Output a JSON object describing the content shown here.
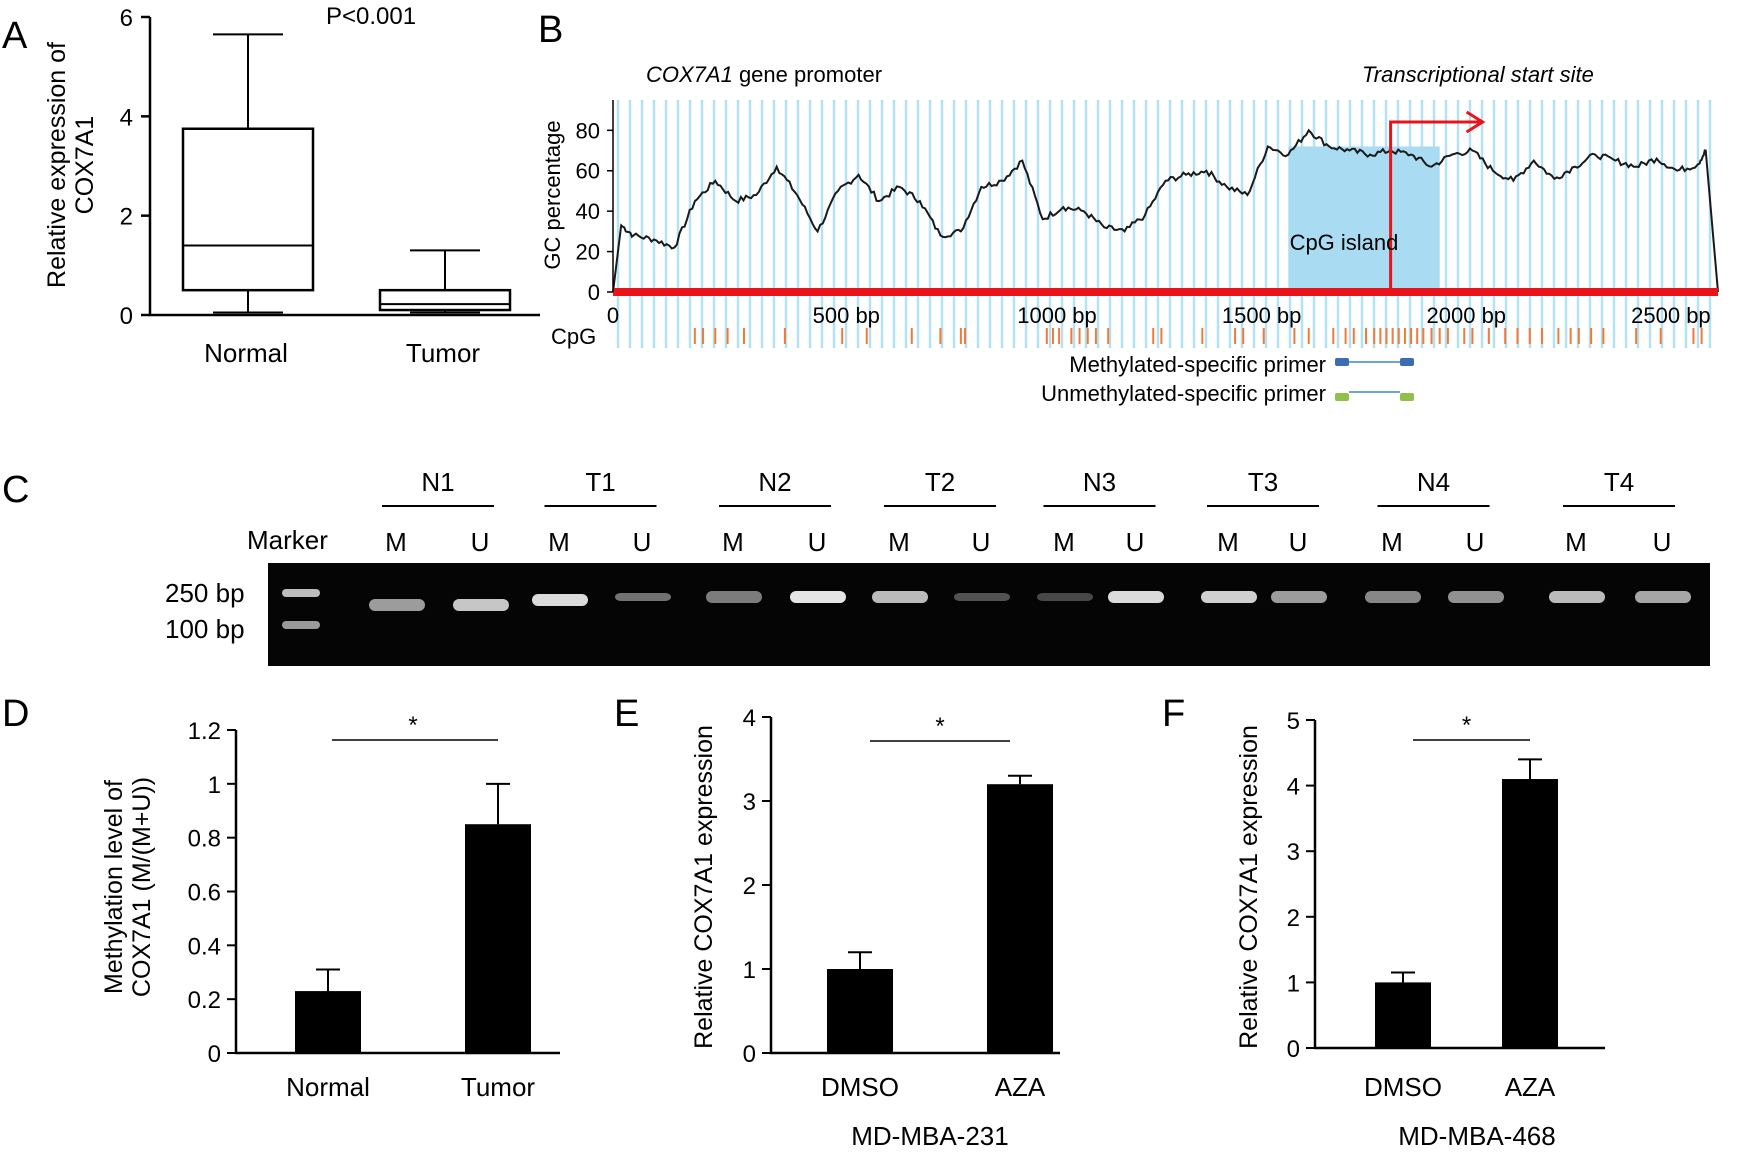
{
  "panel_labels": [
    "A",
    "B",
    "C",
    "D",
    "E",
    "F"
  ],
  "chart_data": [
    {
      "panel": "A",
      "type": "box",
      "ylabel": "Relative expression of COX7A1",
      "ylabel_lines": [
        "Relative expression of",
        "COX7A1"
      ],
      "yticks": [
        "0",
        "2",
        "4",
        "6"
      ],
      "ylim": [
        0,
        6
      ],
      "annotation": "P<0.001",
      "categories": [
        "Normal",
        "Tumor"
      ],
      "boxes": [
        {
          "category": "Normal",
          "min": 0.05,
          "q1": 0.5,
          "median": 1.4,
          "q3": 3.75,
          "max": 5.65
        },
        {
          "category": "Tumor",
          "min": 0.05,
          "q1": 0.1,
          "median": 0.22,
          "q3": 0.5,
          "max": 1.3
        }
      ]
    },
    {
      "panel": "B",
      "type": "line",
      "title_gene": "COX7A1",
      "title_rest": " gene promoter",
      "tss_label": "Transcriptional start site",
      "ylabel": "GC percentage",
      "yticks": [
        "0",
        "20",
        "40",
        "60",
        "80"
      ],
      "ylim": [
        0,
        95
      ],
      "xlim": [
        0,
        2700
      ],
      "xticks": [
        "0",
        "500 bp",
        "1000 bp",
        "1500 bp",
        "2000 bp",
        "2500 bp"
      ],
      "xtick_values": [
        0,
        500,
        1000,
        1500,
        2000,
        2500
      ],
      "cpg_island_label": "CpG island",
      "cpg_island_range": [
        1650,
        2020
      ],
      "tss_position": 1900,
      "cpg_row_label": "CpG",
      "cpg_sites": [
        200,
        220,
        250,
        280,
        320,
        420,
        560,
        620,
        730,
        800,
        850,
        860,
        1060,
        1075,
        1090,
        1120,
        1140,
        1160,
        1180,
        1210,
        1320,
        1340,
        1440,
        1520,
        1540,
        1590,
        1665,
        1700,
        1760,
        1790,
        1810,
        1840,
        1860,
        1875,
        1890,
        1905,
        1920,
        1935,
        1950,
        1965,
        1980,
        2000,
        2020,
        2040,
        2080,
        2100,
        2140,
        2180,
        2210,
        2240,
        2270,
        2310,
        2340,
        2360,
        2390,
        2420,
        2500,
        2560,
        2640,
        2660
      ],
      "series": [
        {
          "x": [
            0,
            20,
            50,
            100,
            150,
            200,
            250,
            300,
            350,
            400,
            450,
            500,
            550,
            600,
            650,
            700,
            750,
            800,
            850,
            900,
            950,
            1000,
            1050,
            1100,
            1150,
            1200,
            1250,
            1300,
            1350,
            1400,
            1450,
            1500,
            1550,
            1600,
            1650,
            1700,
            1750,
            1800,
            1850,
            1900,
            1950,
            2000,
            2050,
            2100,
            2150,
            2200,
            2250,
            2300,
            2350,
            2400,
            2450,
            2500,
            2550,
            2600,
            2650,
            2670,
            2700
          ],
          "y": [
            0,
            33,
            28,
            26,
            22,
            45,
            55,
            45,
            48,
            62,
            48,
            30,
            50,
            58,
            45,
            52,
            45,
            28,
            30,
            52,
            55,
            65,
            36,
            42,
            40,
            32,
            30,
            38,
            55,
            58,
            60,
            52,
            48,
            72,
            68,
            80,
            72,
            70,
            68,
            70,
            68,
            62,
            68,
            70,
            60,
            55,
            65,
            56,
            62,
            68,
            65,
            62,
            66,
            60,
            63,
            70,
            0
          ]
        }
      ],
      "primers": [
        {
          "label": "Methylated-specific primer",
          "color": "#3d6cb0"
        },
        {
          "label": "Unmethylated-specific primer",
          "color": "#8ec04a"
        }
      ]
    },
    {
      "panel": "C",
      "type": "gel",
      "marker_label": "Marker",
      "marker_sizes": [
        "250 bp",
        "100 bp"
      ],
      "samples": [
        "N1",
        "T1",
        "N2",
        "T2",
        "N3",
        "T3",
        "N4",
        "T4"
      ],
      "lanes": [
        "M",
        "U",
        "M",
        "U",
        "M",
        "U",
        "M",
        "U",
        "M",
        "U",
        "M",
        "U",
        "M",
        "U",
        "M",
        "U"
      ],
      "band_intensity": [
        0.55,
        0.75,
        0.85,
        0.35,
        0.4,
        0.9,
        0.7,
        0.2,
        0.15,
        0.85,
        0.8,
        0.55,
        0.45,
        0.5,
        0.7,
        0.6
      ]
    },
    {
      "panel": "D",
      "type": "bar",
      "ylabel": "Methylation level of COX7A1 (M/(M+U))",
      "ylabel_lines": [
        "Methylation level of",
        "COX7A1 (M/(M+U))"
      ],
      "yticks": [
        "0",
        "0.2",
        "0.4",
        "0.6",
        "0.8",
        "1",
        "1.2"
      ],
      "ylim": [
        0,
        1.2
      ],
      "categories": [
        "Normal",
        "Tumor"
      ],
      "values": [
        0.23,
        0.85
      ],
      "errors": [
        0.08,
        0.15
      ],
      "significance": "*"
    },
    {
      "panel": "E",
      "type": "bar",
      "ylabel": "Relative COX7A1 expression",
      "yticks": [
        "0",
        "1",
        "2",
        "3",
        "4"
      ],
      "ylim": [
        0,
        4
      ],
      "categories": [
        "DMSO",
        "AZA"
      ],
      "values": [
        1.0,
        3.2
      ],
      "errors": [
        0.2,
        0.1
      ],
      "significance": "*",
      "xlabel": "MD-MBA-231"
    },
    {
      "panel": "F",
      "type": "bar",
      "ylabel": "Relative COX7A1 expression",
      "yticks": [
        "0",
        "1",
        "2",
        "3",
        "4",
        "5"
      ],
      "ylim": [
        0,
        5
      ],
      "categories": [
        "DMSO",
        "AZA"
      ],
      "values": [
        1.0,
        4.1
      ],
      "errors": [
        0.15,
        0.3
      ],
      "significance": "*",
      "xlabel": "MD-MBA-468"
    }
  ]
}
